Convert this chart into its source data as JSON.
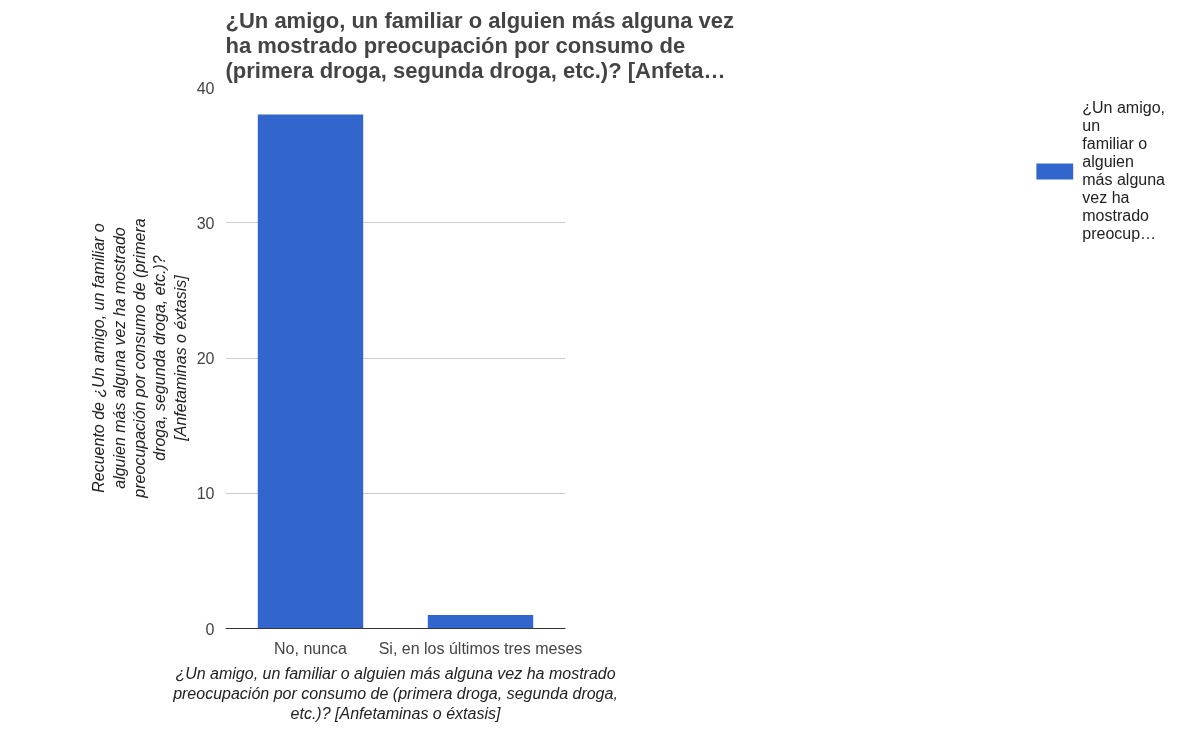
{
  "chart_data": {
    "type": "bar",
    "title": "¿Un amigo, un familiar o alguien más alguna vez ha mostrado preocupación por consumo de (primera droga, segunda droga, etc.)? [Anfeta…",
    "xlabel": "¿Un amigo, un familiar o alguien más alguna vez ha mostrado preocupación por consumo de (primera droga, segunda droga, etc.)? [Anfetaminas o éxtasis]",
    "ylabel": "Recuento de ¿Un amigo, un familiar o alguien más alguna vez ha mostrado preocupación por consumo de (primera droga, segunda droga, etc.)? [Anfetaminas o éxtasis]",
    "categories": [
      "No, nunca",
      "Si, en los últimos tres meses"
    ],
    "series": [
      {
        "name": "¿Un amigo, un familiar o alguien más alguna vez ha mostrado preocup…",
        "color": "#3366cc",
        "values": [
          38,
          1
        ]
      }
    ],
    "ylim": [
      0,
      40
    ],
    "yticks": [
      0,
      10,
      20,
      30,
      40
    ],
    "grid": "y",
    "legend": "right"
  }
}
